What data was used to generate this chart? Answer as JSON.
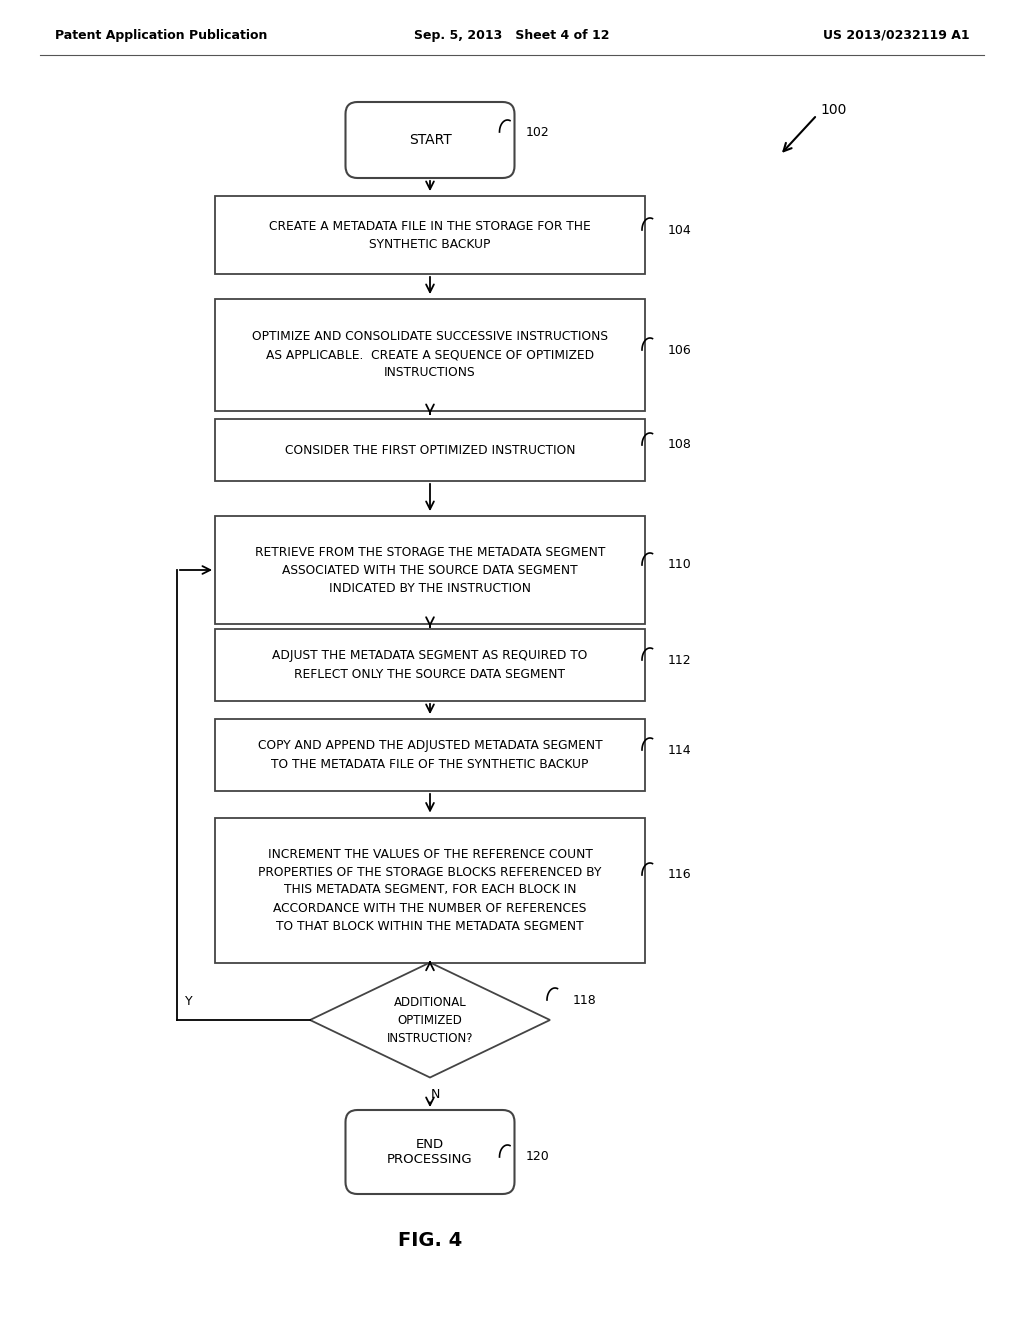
{
  "header_left": "Patent Application Publication",
  "header_center": "Sep. 5, 2013   Sheet 4 of 12",
  "header_right": "US 2013/0232119 A1",
  "fig_label": "FIG. 4",
  "ref_100": "100",
  "start_label": "START",
  "start_ref": "102",
  "boxes": [
    {
      "ref": "104",
      "text": "CREATE A METADATA FILE IN THE STORAGE FOR THE\nSYNTHETIC BACKUP"
    },
    {
      "ref": "106",
      "text": "OPTIMIZE AND CONSOLIDATE SUCCESSIVE INSTRUCTIONS\nAS APPLICABLE.  CREATE A SEQUENCE OF OPTIMIZED\nINSTRUCTIONS"
    },
    {
      "ref": "108",
      "text": "CONSIDER THE FIRST OPTIMIZED INSTRUCTION"
    },
    {
      "ref": "110",
      "text": "RETRIEVE FROM THE STORAGE THE METADATA SEGMENT\nASSOCIATED WITH THE SOURCE DATA SEGMENT\nINDICATED BY THE INSTRUCTION"
    },
    {
      "ref": "112",
      "text": "ADJUST THE METADATA SEGMENT AS REQUIRED TO\nREFLECT ONLY THE SOURCE DATA SEGMENT"
    },
    {
      "ref": "114",
      "text": "COPY AND APPEND THE ADJUSTED METADATA SEGMENT\nTO THE METADATA FILE OF THE SYNTHETIC BACKUP"
    },
    {
      "ref": "116",
      "text": "INCREMENT THE VALUES OF THE REFERENCE COUNT\nPROPERTIES OF THE STORAGE BLOCKS REFERENCED BY\nTHIS METADATA SEGMENT, FOR EACH BLOCK IN\nACCORDANCE WITH THE NUMBER OF REFERENCES\nTO THAT BLOCK WITHIN THE METADATA SEGMENT"
    }
  ],
  "diamond_ref": "118",
  "diamond_text": "ADDITIONAL\nOPTIMIZED\nINSTRUCTION?",
  "end_label": "END\nPROCESSING",
  "end_ref": "120",
  "yes_label": "Y",
  "no_label": "N",
  "bg_color": "#ffffff",
  "box_edge_color": "#333333",
  "text_color": "#000000",
  "arrow_color": "#000000"
}
